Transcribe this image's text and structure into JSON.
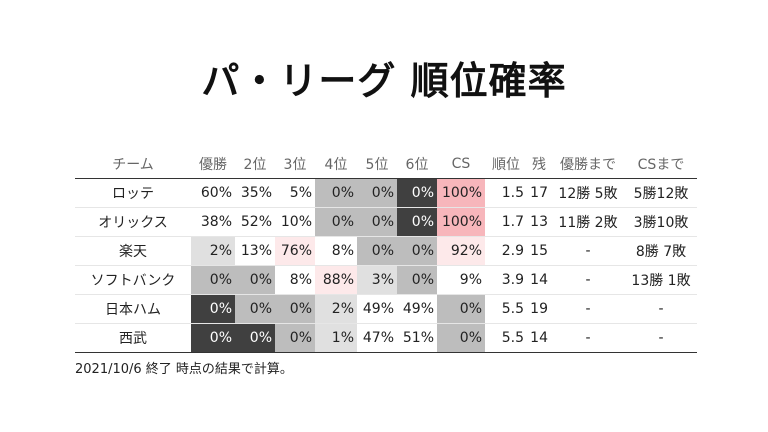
{
  "title": "パ・リーグ 順位確率",
  "note": "2021/10/6 終了 時点の結果で計算。",
  "colors": {
    "shade_0": "#ffffff",
    "shade_light": "#e0e0e0",
    "shade_mid": "#bdbdbd",
    "shade_dark": "#404040",
    "pink_strong": "#f7b6bb",
    "pink_light": "#fde9ea"
  },
  "chart_data": {
    "type": "table",
    "columns": [
      "チーム",
      "優勝",
      "2位",
      "3位",
      "4位",
      "5位",
      "6位",
      "CS",
      "順位",
      "残",
      "優勝まで",
      "CSまで"
    ],
    "rows": [
      {
        "team": "ロッテ",
        "cells": [
          "60%",
          "35%",
          "5%",
          "0%",
          "0%",
          "0%",
          "100%",
          "1.5",
          "17",
          "12勝 5敗",
          "5勝12敗"
        ],
        "values": [
          60,
          35,
          5,
          0,
          0,
          0,
          100
        ]
      },
      {
        "team": "オリックス",
        "cells": [
          "38%",
          "52%",
          "10%",
          "0%",
          "0%",
          "0%",
          "100%",
          "1.7",
          "13",
          "11勝 2敗",
          "3勝10敗"
        ],
        "values": [
          38,
          52,
          10,
          0,
          0,
          0,
          100
        ]
      },
      {
        "team": "楽天",
        "cells": [
          "2%",
          "13%",
          "76%",
          "8%",
          "0%",
          "0%",
          "92%",
          "2.9",
          "15",
          "-",
          "8勝 7敗"
        ],
        "values": [
          2,
          13,
          76,
          8,
          0,
          0,
          92
        ]
      },
      {
        "team": "ソフトバンク",
        "cells": [
          "0%",
          "0%",
          "8%",
          "88%",
          "3%",
          "0%",
          "9%",
          "3.9",
          "14",
          "-",
          "13勝 1敗"
        ],
        "values": [
          0,
          0,
          8,
          88,
          3,
          0,
          9
        ]
      },
      {
        "team": "日本ハム",
        "cells": [
          "0%",
          "0%",
          "0%",
          "2%",
          "49%",
          "49%",
          "0%",
          "5.5",
          "19",
          "-",
          "-"
        ],
        "values": [
          0,
          0,
          0,
          2,
          49,
          49,
          0
        ]
      },
      {
        "team": "西武",
        "cells": [
          "0%",
          "0%",
          "0%",
          "1%",
          "47%",
          "51%",
          "0%",
          "5.5",
          "14",
          "-",
          "-"
        ],
        "values": [
          0,
          0,
          0,
          1,
          47,
          51,
          0
        ]
      }
    ],
    "cell_shading": [
      [
        "shade_0",
        "shade_0",
        "shade_0",
        "shade_mid",
        "shade_mid",
        "shade_dark",
        "pink_strong",
        "shade_0",
        "shade_0",
        "shade_0",
        "shade_0"
      ],
      [
        "shade_0",
        "shade_0",
        "shade_0",
        "shade_mid",
        "shade_mid",
        "shade_dark",
        "pink_strong",
        "shade_0",
        "shade_0",
        "shade_0",
        "shade_0"
      ],
      [
        "shade_light",
        "shade_0",
        "pink_light",
        "shade_0",
        "shade_mid",
        "shade_mid",
        "pink_light",
        "shade_0",
        "shade_0",
        "shade_0",
        "shade_0"
      ],
      [
        "shade_mid",
        "shade_mid",
        "shade_0",
        "pink_light",
        "shade_light",
        "shade_mid",
        "shade_0",
        "shade_0",
        "shade_0",
        "shade_0",
        "shade_0"
      ],
      [
        "shade_dark",
        "shade_mid",
        "shade_mid",
        "shade_light",
        "shade_0",
        "shade_0",
        "shade_mid",
        "shade_0",
        "shade_0",
        "shade_0",
        "shade_0"
      ],
      [
        "shade_dark",
        "shade_dark",
        "shade_mid",
        "shade_light",
        "shade_0",
        "shade_0",
        "shade_mid",
        "shade_0",
        "shade_0",
        "shade_0",
        "shade_0"
      ]
    ]
  }
}
